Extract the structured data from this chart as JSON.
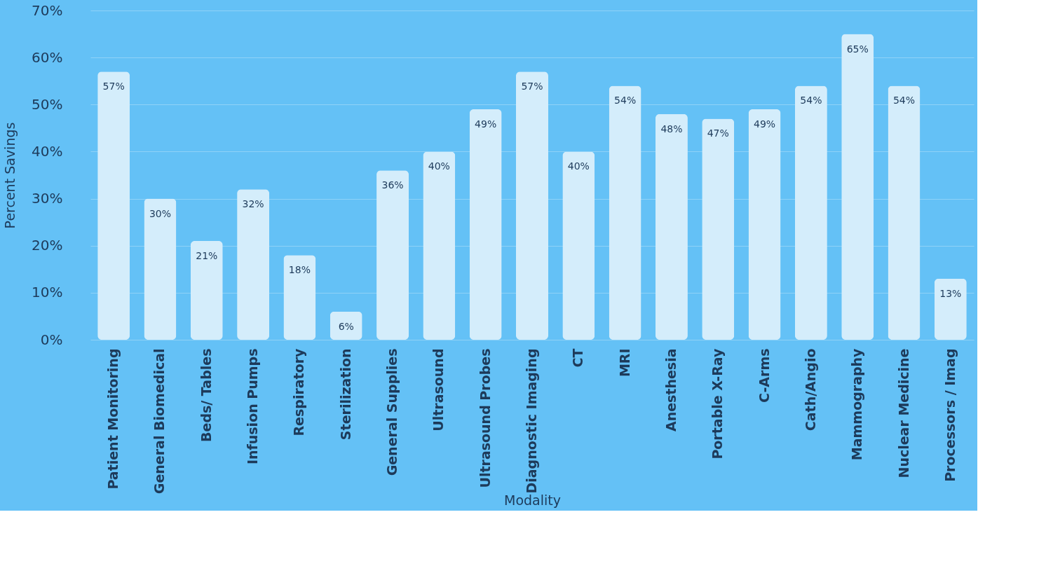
{
  "chart_data": {
    "type": "bar",
    "xlabel": "Modality",
    "ylabel": "Percent Savings",
    "categories": [
      "Patient Monitoring",
      "General Biomedical",
      "Beds/ Tables",
      "Infusion Pumps",
      "Respiratory",
      "Sterilization",
      "General Supplies",
      "Ultrasound",
      "Ultrasound Probes",
      "Diagnostic Imaging",
      "CT",
      "MRI",
      "Anesthesia",
      "Portable X-Ray",
      "C-Arms",
      "Cath/Angio",
      "Mammography",
      "Nuclear Medicine",
      "Processors / Imag"
    ],
    "values": [
      57,
      30,
      21,
      32,
      18,
      6,
      36,
      40,
      49,
      57,
      40,
      54,
      48,
      47,
      49,
      54,
      65,
      54,
      13
    ],
    "color": "#d4edfb",
    "ylim": [
      0,
      70
    ],
    "yticks": [
      {
        "value": 0,
        "label": "0%"
      },
      {
        "value": 10,
        "label": "10%"
      },
      {
        "value": 20,
        "label": "20%"
      },
      {
        "value": 30,
        "label": "30%"
      },
      {
        "value": 40,
        "label": "40%"
      },
      {
        "value": 50,
        "label": "50%"
      },
      {
        "value": 60,
        "label": "60%"
      },
      {
        "value": 70,
        "label": "70%"
      }
    ],
    "value_labels": [
      "57%",
      "30%",
      "21%",
      "32%",
      "18%",
      "6%",
      "36%",
      "40%",
      "49%",
      "57%",
      "40%",
      "54%",
      "48%",
      "47%",
      "49%",
      "54%",
      "65%",
      "54%",
      "13%"
    ],
    "grid": "y"
  }
}
